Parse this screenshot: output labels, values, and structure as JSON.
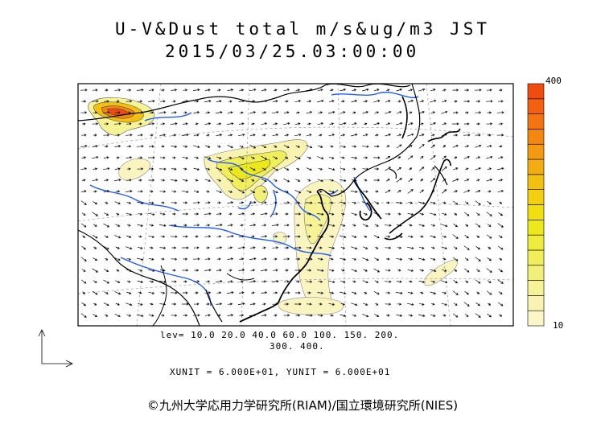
{
  "title": {
    "line1": "U-V&Dust total m/s&ug/m3 JST",
    "line2": "2015/03/25.03:00:00"
  },
  "colorbar": {
    "max_label": "400",
    "min_label": "10",
    "colors": [
      "#fbf6c8",
      "#f8f3b0",
      "#f6f296",
      "#f3f07a",
      "#f1ee5c",
      "#eeec3c",
      "#ebe81c",
      "#f1df10",
      "#f3cf10",
      "#f3bf10",
      "#f3ad10",
      "#f39a10",
      "#f38710",
      "#f37410",
      "#f36010",
      "#f04c10"
    ]
  },
  "legend": {
    "levels_line1": "lev= 10.0 20.0 40.0 60.0 100. 150. 200.",
    "levels_line2": "300. 400.",
    "units_line": "XUNIT = 6.000E+01, YUNIT = 6.000E+01"
  },
  "copyright": "©九州大学応用力学研究所(RIAM)/国立環境研究所(NIES)",
  "colors": {
    "coast": "#000000",
    "river": "#1e5bff",
    "dust_low": "#f8f3b0",
    "dust_high": "#f06010"
  }
}
